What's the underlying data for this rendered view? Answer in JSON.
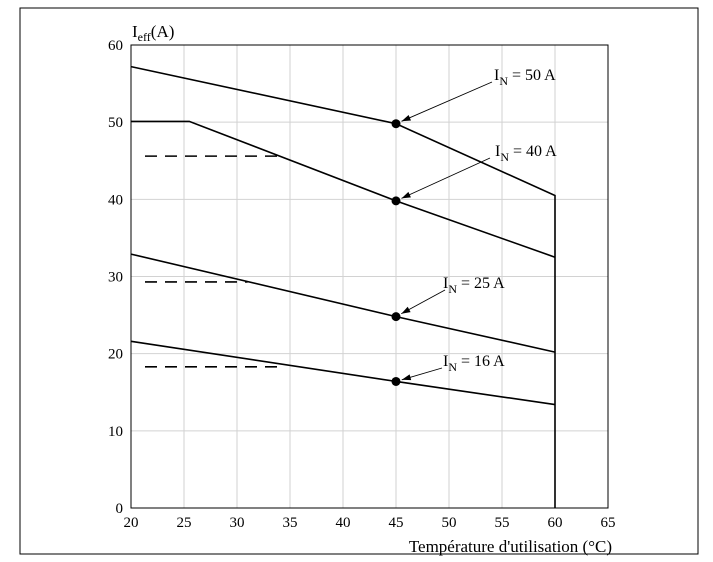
{
  "chart_data": {
    "type": "line",
    "title": "",
    "ylabel": {
      "main": "I",
      "sub": "eff",
      "rest": "(A)"
    },
    "xlabel": "Température d'utilisation (°C)",
    "xlim": [
      20,
      65
    ],
    "ylim": [
      0,
      60
    ],
    "x_ticks": [
      20,
      25,
      30,
      35,
      40,
      45,
      50,
      55,
      60,
      65
    ],
    "y_ticks": [
      0,
      10,
      20,
      30,
      40,
      50,
      60
    ],
    "grid": true,
    "series": [
      {
        "name": "I_N = 50 A",
        "label": {
          "main": "I",
          "sub": "N",
          "rest": " = 50 A"
        },
        "points": [
          [
            20,
            57.2
          ],
          [
            45,
            49.8
          ],
          [
            60,
            40.5
          ],
          [
            60,
            0
          ]
        ],
        "marker": [
          45,
          49.8
        ],
        "reference_level": null
      },
      {
        "name": "I_N = 40 A",
        "label": {
          "main": "I",
          "sub": "N",
          "rest": " = 40 A"
        },
        "points": [
          [
            20,
            50.1
          ],
          [
            25.5,
            50.1
          ],
          [
            45,
            39.8
          ],
          [
            60,
            32.5
          ]
        ],
        "marker": [
          45,
          39.8
        ],
        "reference_level": {
          "y": 45.6,
          "x_start": 20,
          "x_end": 34
        }
      },
      {
        "name": "I_N = 25 A",
        "label": {
          "main": "I",
          "sub": "N",
          "rest": " = 25 A"
        },
        "points": [
          [
            20,
            32.9
          ],
          [
            45,
            24.8
          ],
          [
            60,
            20.2
          ]
        ],
        "marker": [
          45,
          24.8
        ],
        "reference_level": {
          "y": 29.3,
          "x_start": 20,
          "x_end": 31
        }
      },
      {
        "name": "I_N = 16 A",
        "label": {
          "main": "I",
          "sub": "N",
          "rest": " = 16 A"
        },
        "points": [
          [
            20,
            21.6
          ],
          [
            45,
            16.4
          ],
          [
            60,
            13.4
          ]
        ],
        "marker": [
          45,
          16.4
        ],
        "reference_level": {
          "y": 18.3,
          "x_start": 20,
          "x_end": 34
        }
      }
    ]
  }
}
